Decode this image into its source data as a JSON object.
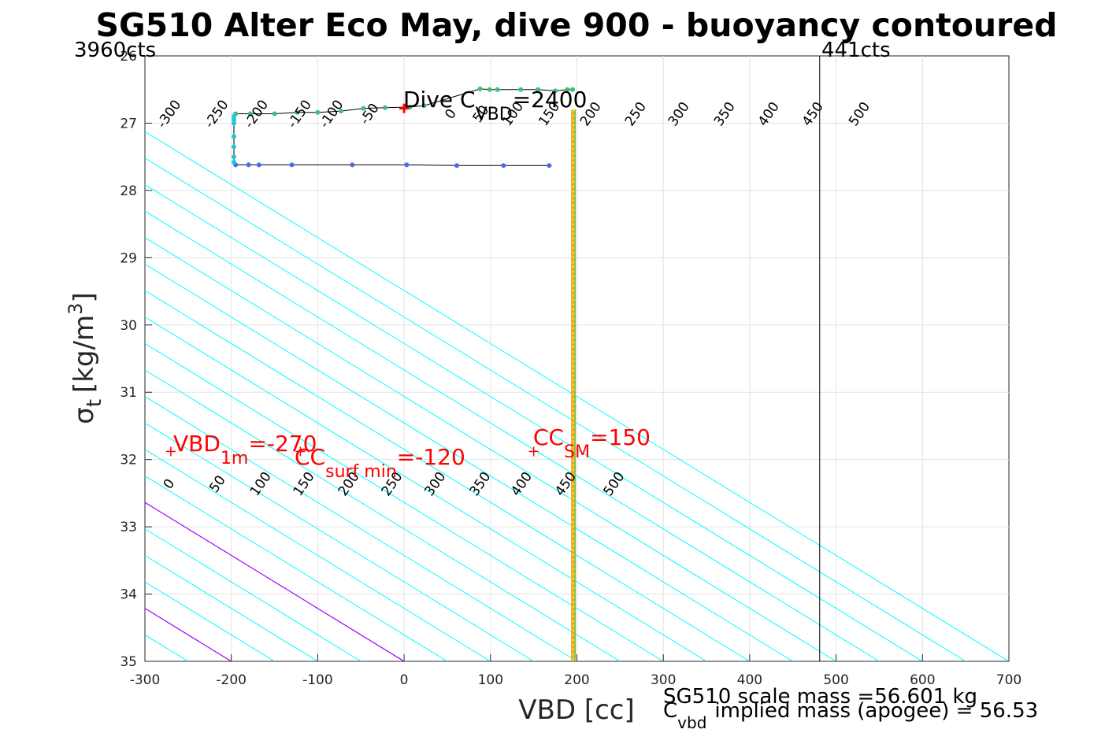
{
  "chart_data": {
    "type": "scatter",
    "title": "SG510 Alter Eco May, dive 900 - buoyancy contoured",
    "xlabel": "VBD [cc]",
    "ylabel_sym": "σ",
    "ylabel_sub": "t",
    "ylabel_unit": "[kg/m",
    "ylabel_sup": "3",
    "ylabel_close": "]",
    "xlim": [
      -300,
      700
    ],
    "ylim": [
      26,
      35
    ],
    "y_reversed": true,
    "grid": true,
    "xticks": [
      -300,
      -200,
      -100,
      0,
      100,
      200,
      300,
      400,
      500,
      600,
      700
    ],
    "yticks": [
      26,
      27,
      28,
      29,
      30,
      31,
      32,
      33,
      34,
      35
    ],
    "contour_slope_cc_per_sigma": 127,
    "contours_cyan": [
      -300,
      -250,
      -200,
      -150,
      -100,
      -50,
      50,
      100,
      150,
      200,
      250,
      300,
      350,
      400,
      450,
      500
    ],
    "contour_zero_color": "#0000cc",
    "contour_color": "#00ffff",
    "magenta_lines_vbd_at_sigma_35": [
      -200,
      0
    ],
    "magenta_color": "#b400ff",
    "labels_top": {
      "sigma": 26.9,
      "items": [
        {
          "text": "-300",
          "vbd": -268
        },
        {
          "text": "-250",
          "vbd": -213
        },
        {
          "text": "-200",
          "vbd": -167
        },
        {
          "text": "-150",
          "vbd": -117
        },
        {
          "text": "-100",
          "vbd": -80
        },
        {
          "text": "-50",
          "vbd": -36
        },
        {
          "text": "0",
          "vbd": 58
        },
        {
          "text": "50",
          "vbd": 93
        },
        {
          "text": "100",
          "vbd": 130
        },
        {
          "text": "150",
          "vbd": 172
        },
        {
          "text": "200",
          "vbd": 220
        },
        {
          "text": "250",
          "vbd": 272
        },
        {
          "text": "300",
          "vbd": 322
        },
        {
          "text": "350",
          "vbd": 375
        },
        {
          "text": "400",
          "vbd": 426
        },
        {
          "text": "450",
          "vbd": 477
        },
        {
          "text": "500",
          "vbd": 531
        }
      ]
    },
    "labels_bottom": {
      "sigma": 32.4,
      "items": [
        {
          "text": "0",
          "vbd": -268
        },
        {
          "text": "50",
          "vbd": -212
        },
        {
          "text": "100",
          "vbd": -162
        },
        {
          "text": "150",
          "vbd": -112
        },
        {
          "text": "200",
          "vbd": -60
        },
        {
          "text": "250",
          "vbd": -10
        },
        {
          "text": "300",
          "vbd": 40
        },
        {
          "text": "350",
          "vbd": 92
        },
        {
          "text": "400",
          "vbd": 140
        },
        {
          "text": "450",
          "vbd": 191
        },
        {
          "text": "500",
          "vbd": 247
        }
      ]
    },
    "series": [
      {
        "color_key": "dive_green",
        "color": "#3cbf78",
        "points": [
          [
            -195,
            26.86
          ],
          [
            -178,
            26.86
          ],
          [
            -150,
            26.86
          ],
          [
            -124,
            26.84
          ],
          [
            -100,
            26.84
          ],
          [
            -73,
            26.82
          ],
          [
            -47,
            26.78
          ],
          [
            -22,
            26.77
          ],
          [
            7,
            26.76
          ],
          [
            23,
            26.74
          ],
          [
            88,
            26.49
          ],
          [
            99,
            26.5
          ],
          [
            108,
            26.5
          ],
          [
            135,
            26.5
          ],
          [
            155,
            26.5
          ],
          [
            175,
            26.52
          ],
          [
            189,
            26.5
          ],
          [
            195,
            26.5
          ]
        ]
      },
      {
        "color_key": "bottom_blue",
        "color": "#4b6be8",
        "points": [
          [
            -195,
            27.62
          ],
          [
            -180,
            27.62
          ],
          [
            -168,
            27.62
          ],
          [
            -130,
            27.62
          ],
          [
            -60,
            27.62
          ],
          [
            3,
            27.62
          ],
          [
            61,
            27.63
          ],
          [
            115,
            27.63
          ],
          [
            168,
            27.63
          ]
        ]
      },
      {
        "color_key": "apogee_cyan",
        "color": "#1ec8d8",
        "points": [
          [
            -197,
            26.9
          ],
          [
            -197,
            26.95
          ],
          [
            -197,
            27.0
          ],
          [
            -197,
            27.2
          ],
          [
            -197,
            27.35
          ],
          [
            -197,
            27.5
          ],
          [
            -197,
            27.58
          ]
        ]
      },
      {
        "color_key": "deep_yellow",
        "color": "#ffd700",
        "points": [
          [
            196,
            26.8
          ],
          [
            196,
            28.0
          ],
          [
            196,
            29.0
          ],
          [
            196,
            30.0
          ],
          [
            196,
            31.0
          ],
          [
            196,
            32.0
          ],
          [
            196,
            33.0
          ],
          [
            196,
            34.0
          ],
          [
            196,
            35.0
          ]
        ]
      }
    ],
    "vertical_lines": [
      {
        "vbd": 481,
        "color": "#000000"
      }
    ],
    "red_markers": [
      {
        "vbd": 0,
        "sigma": 26.78
      }
    ],
    "annotations": {
      "dive_c": {
        "text": "Dive C",
        "sub": "VBD",
        "value": "=2400"
      },
      "vbd1m": {
        "text": "VBD",
        "sub": "1m",
        "value": "=-270"
      },
      "ccsurf": {
        "text": "CC",
        "sub": "surf min",
        "value": "=-120"
      },
      "ccsm": {
        "text": "CC",
        "sub": "SM",
        "value": "=150"
      }
    },
    "counts_left": "3960cts",
    "counts_right": "441cts",
    "scale_mass": "SG510 scale mass =56.601 kg",
    "implied_c": "C",
    "implied_sub": "vbd",
    "implied_mass": "implied mass (apogee) = 56.53"
  }
}
